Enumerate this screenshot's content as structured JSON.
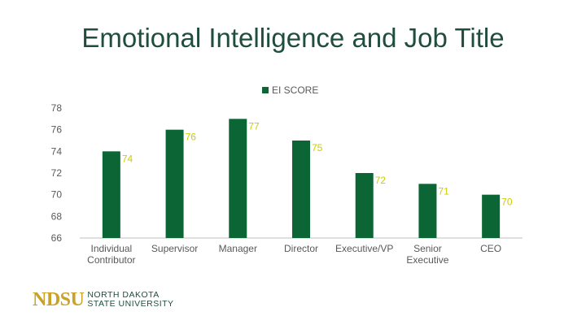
{
  "title": "Emotional Intelligence and Job Title",
  "logo": {
    "mark": "NDSU",
    "line1": "NORTH DAKOTA",
    "line2": "STATE UNIVERSITY"
  },
  "colors": {
    "bar": "#0b6534",
    "label": "#cccc00",
    "tick": "#595959",
    "title": "#1f4e3d"
  },
  "chart_data": {
    "type": "bar",
    "title": "Emotional Intelligence and Job Title",
    "categories": [
      "Individual Contributor",
      "Supervisor",
      "Manager",
      "Director",
      "Executive/VP",
      "Senior Executive",
      "CEO"
    ],
    "category_lines": [
      [
        "Individual",
        "Contributor"
      ],
      [
        "Supervisor"
      ],
      [
        "Manager"
      ],
      [
        "Director"
      ],
      [
        "Executive/VP"
      ],
      [
        "Senior",
        "Executive"
      ],
      [
        "CEO"
      ]
    ],
    "series": [
      {
        "name": "EI SCORE",
        "values": [
          74,
          76,
          77,
          75,
          72,
          71,
          70
        ]
      }
    ],
    "ylim": [
      66,
      78
    ],
    "yticks": [
      66,
      68,
      70,
      72,
      74,
      76,
      78
    ],
    "grid": false,
    "legend": "top",
    "data_labels": true
  }
}
